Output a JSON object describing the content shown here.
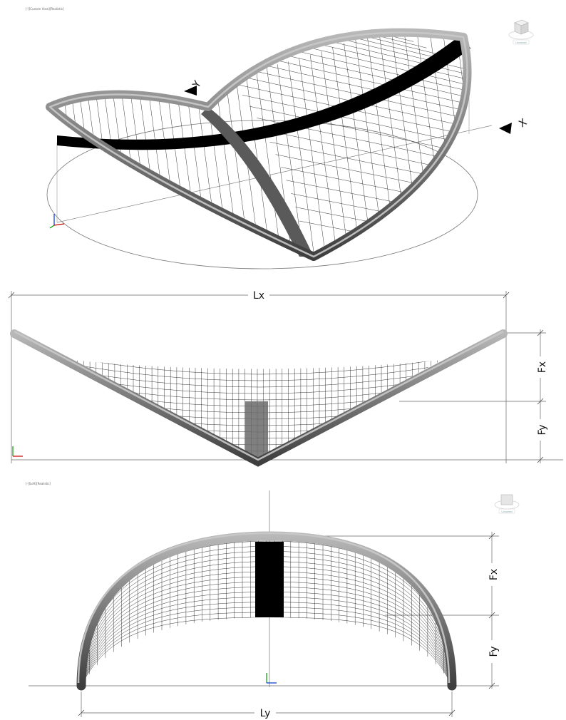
{
  "viewports": {
    "top_label": "[-][Custom View][Realistic]",
    "bottom_label": "[-][Left][Realistic]"
  },
  "viewcube": {
    "top_caption": "Unnamed",
    "bottom_caption": "Unnamed"
  },
  "axes": {
    "x": "X",
    "y": "Y"
  },
  "dimensions": {
    "lx": "Lx",
    "fx": "Fx",
    "fy": "Fy",
    "ly": "Ly"
  },
  "colors": {
    "tube": "#8a8a8a",
    "tube_dark": "#4e4e4e",
    "mesh": "#222222",
    "band": "#000000",
    "axis_red": "#cc0000",
    "axis_green": "#00a000",
    "axis_blue": "#0033cc"
  }
}
